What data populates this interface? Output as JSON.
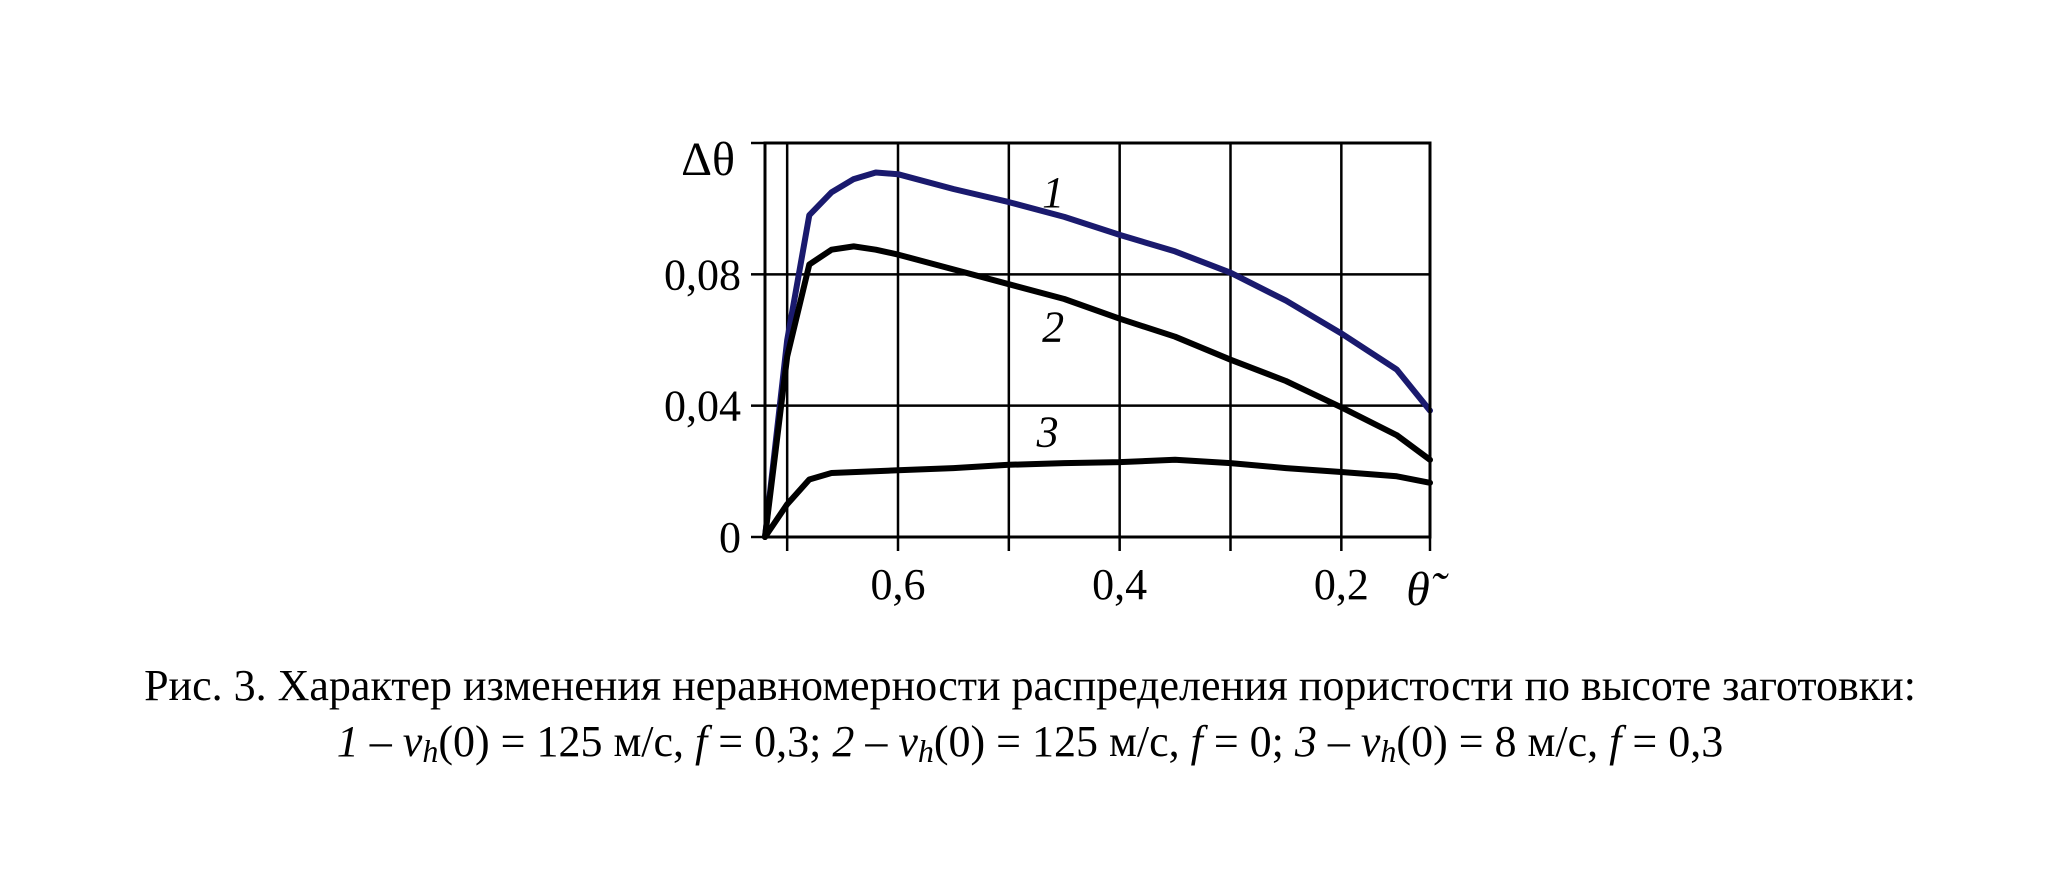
{
  "chart_data": {
    "type": "line",
    "title": "",
    "ylabel": "Δθ",
    "xlabel": "θ̃",
    "x_reversed": true,
    "xlim": [
      0.72,
      0.12
    ],
    "ylim": [
      0,
      0.12
    ],
    "x_ticks": [
      0.7,
      0.6,
      0.5,
      0.4,
      0.3,
      0.2,
      0.12
    ],
    "x_tick_labels": [
      {
        "x": 0.6,
        "label": "0,6"
      },
      {
        "x": 0.4,
        "label": "0,4"
      },
      {
        "x": 0.2,
        "label": "0,2"
      }
    ],
    "y_ticks": [
      0,
      0.04,
      0.08,
      0.12
    ],
    "y_tick_labels": [
      {
        "y": 0,
        "label": "0"
      },
      {
        "y": 0.04,
        "label": "0,04"
      },
      {
        "y": 0.08,
        "label": "0,08"
      }
    ],
    "grid": true,
    "series": [
      {
        "name": "1",
        "color": "#1a1a6e",
        "points": [
          [
            0.72,
            0.0
          ],
          [
            0.7,
            0.06
          ],
          [
            0.68,
            0.098
          ],
          [
            0.66,
            0.105
          ],
          [
            0.64,
            0.109
          ],
          [
            0.62,
            0.111
          ],
          [
            0.6,
            0.1105
          ],
          [
            0.55,
            0.106
          ],
          [
            0.5,
            0.102
          ],
          [
            0.45,
            0.0975
          ],
          [
            0.4,
            0.092
          ],
          [
            0.35,
            0.087
          ],
          [
            0.3,
            0.0805
          ],
          [
            0.25,
            0.072
          ],
          [
            0.2,
            0.062
          ],
          [
            0.15,
            0.051
          ],
          [
            0.12,
            0.0385
          ]
        ]
      },
      {
        "name": "2",
        "color": "#000000",
        "points": [
          [
            0.72,
            0.0
          ],
          [
            0.7,
            0.055
          ],
          [
            0.68,
            0.083
          ],
          [
            0.66,
            0.0875
          ],
          [
            0.64,
            0.0885
          ],
          [
            0.62,
            0.0875
          ],
          [
            0.6,
            0.086
          ],
          [
            0.55,
            0.0815
          ],
          [
            0.5,
            0.077
          ],
          [
            0.45,
            0.0725
          ],
          [
            0.4,
            0.0665
          ],
          [
            0.35,
            0.061
          ],
          [
            0.3,
            0.054
          ],
          [
            0.25,
            0.0475
          ],
          [
            0.2,
            0.0395
          ],
          [
            0.15,
            0.031
          ],
          [
            0.12,
            0.0235
          ]
        ]
      },
      {
        "name": "3",
        "color": "#000000",
        "points": [
          [
            0.72,
            0.0
          ],
          [
            0.7,
            0.01
          ],
          [
            0.68,
            0.0175
          ],
          [
            0.66,
            0.0195
          ],
          [
            0.6,
            0.0203
          ],
          [
            0.55,
            0.021
          ],
          [
            0.5,
            0.022
          ],
          [
            0.45,
            0.0225
          ],
          [
            0.4,
            0.0228
          ],
          [
            0.35,
            0.0235
          ],
          [
            0.3,
            0.0225
          ],
          [
            0.25,
            0.021
          ],
          [
            0.2,
            0.0198
          ],
          [
            0.15,
            0.0185
          ],
          [
            0.12,
            0.0165
          ]
        ]
      }
    ],
    "curve_labels": [
      {
        "series": "1",
        "x": 0.46,
        "y": 0.1005,
        "text": "1"
      },
      {
        "series": "2",
        "x": 0.46,
        "y": 0.0595,
        "text": "2"
      },
      {
        "series": "3",
        "x": 0.465,
        "y": 0.0275,
        "text": "3"
      }
    ]
  },
  "caption": {
    "line1": "Рис. 3. Характер изменения неравномерности распределения пористости по высоте заготовки:",
    "items": [
      {
        "num": "1",
        "v": "v",
        "sub": "h",
        "arg": "(0) = 125 м/с,",
        "f": "f",
        "fval": "= 0,3",
        "sep": ";"
      },
      {
        "num": "2",
        "v": "v",
        "sub": "h",
        "arg": "(0) = 125 м/с,",
        "f": "f",
        "fval": "= 0",
        "sep": ";"
      },
      {
        "num": "3",
        "v": "v",
        "sub": "h",
        "arg": "(0) = 8 м/с,",
        "f": "f",
        "fval": "= 0,3",
        "sep": ""
      }
    ],
    "dash": "–"
  }
}
